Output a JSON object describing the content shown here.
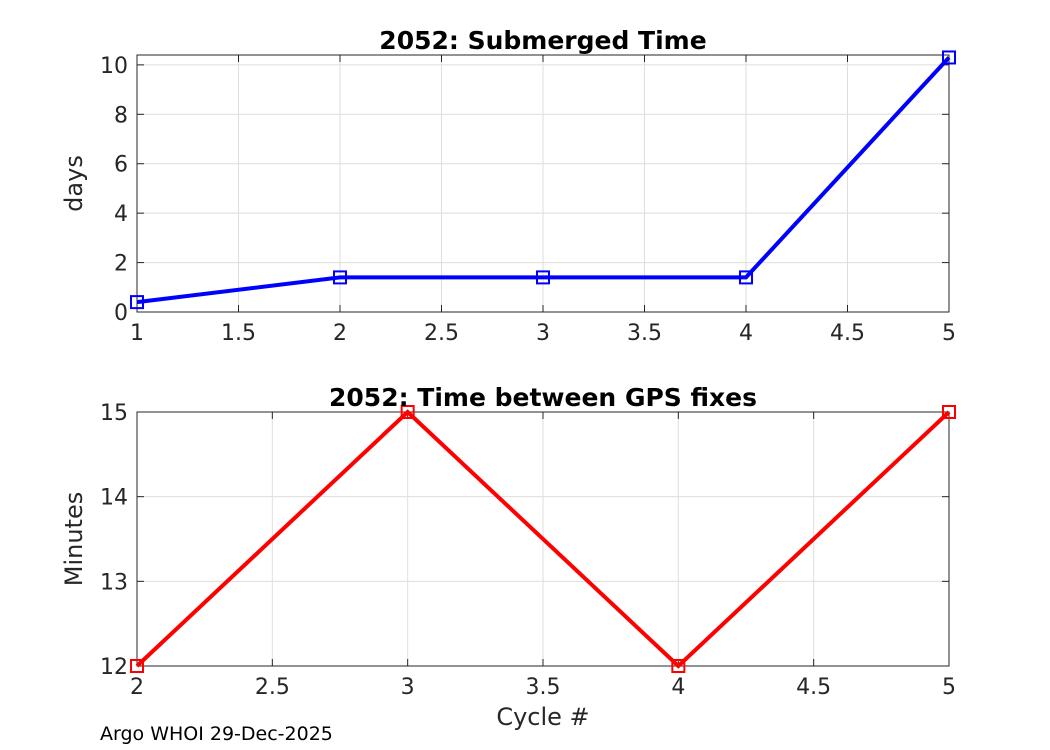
{
  "figure": {
    "background": "#ffffff",
    "footer_caption": "Argo WHOI 29-Dec-2025"
  },
  "style": {
    "axis_color": "#262626",
    "grid_color": "#dedede",
    "tick_label_color": "#262626",
    "title_color": "#000000"
  },
  "chart_data": [
    {
      "type": "line",
      "title": "2052: Submerged Time",
      "xlabel": "",
      "ylabel": "days",
      "x": [
        1,
        2,
        3,
        4,
        5
      ],
      "y": [
        0.4,
        1.4,
        1.4,
        1.4,
        10.3
      ],
      "xlim": [
        1,
        5
      ],
      "ylim": [
        0,
        10.4
      ],
      "xticks": [
        1,
        1.5,
        2,
        2.5,
        3,
        3.5,
        4,
        4.5,
        5
      ],
      "xtick_labels": [
        "1",
        "1.5",
        "2",
        "2.5",
        "3",
        "3.5",
        "4",
        "4.5",
        "5"
      ],
      "yticks": [
        0,
        2,
        4,
        6,
        8,
        10
      ],
      "ytick_labels": [
        "0",
        "2",
        "4",
        "6",
        "8",
        "10"
      ],
      "grid": true,
      "legend": null,
      "line_color": "#0000ff",
      "line_width": 4,
      "marker": "open-square"
    },
    {
      "type": "line",
      "title": "2052: Time between GPS fixes",
      "xlabel": "Cycle #",
      "ylabel": "Minutes",
      "x": [
        2,
        3,
        4,
        5
      ],
      "y": [
        12,
        15,
        12,
        15
      ],
      "xlim": [
        2,
        5
      ],
      "ylim": [
        12,
        15
      ],
      "xticks": [
        2,
        2.5,
        3,
        3.5,
        4,
        4.5,
        5
      ],
      "xtick_labels": [
        "2",
        "2.5",
        "3",
        "3.5",
        "4",
        "4.5",
        "5"
      ],
      "yticks": [
        12,
        13,
        14,
        15
      ],
      "ytick_labels": [
        "12",
        "13",
        "14",
        "15"
      ],
      "grid": true,
      "legend": null,
      "line_color": "#ff0000",
      "line_width": 4,
      "marker": "open-square"
    }
  ]
}
